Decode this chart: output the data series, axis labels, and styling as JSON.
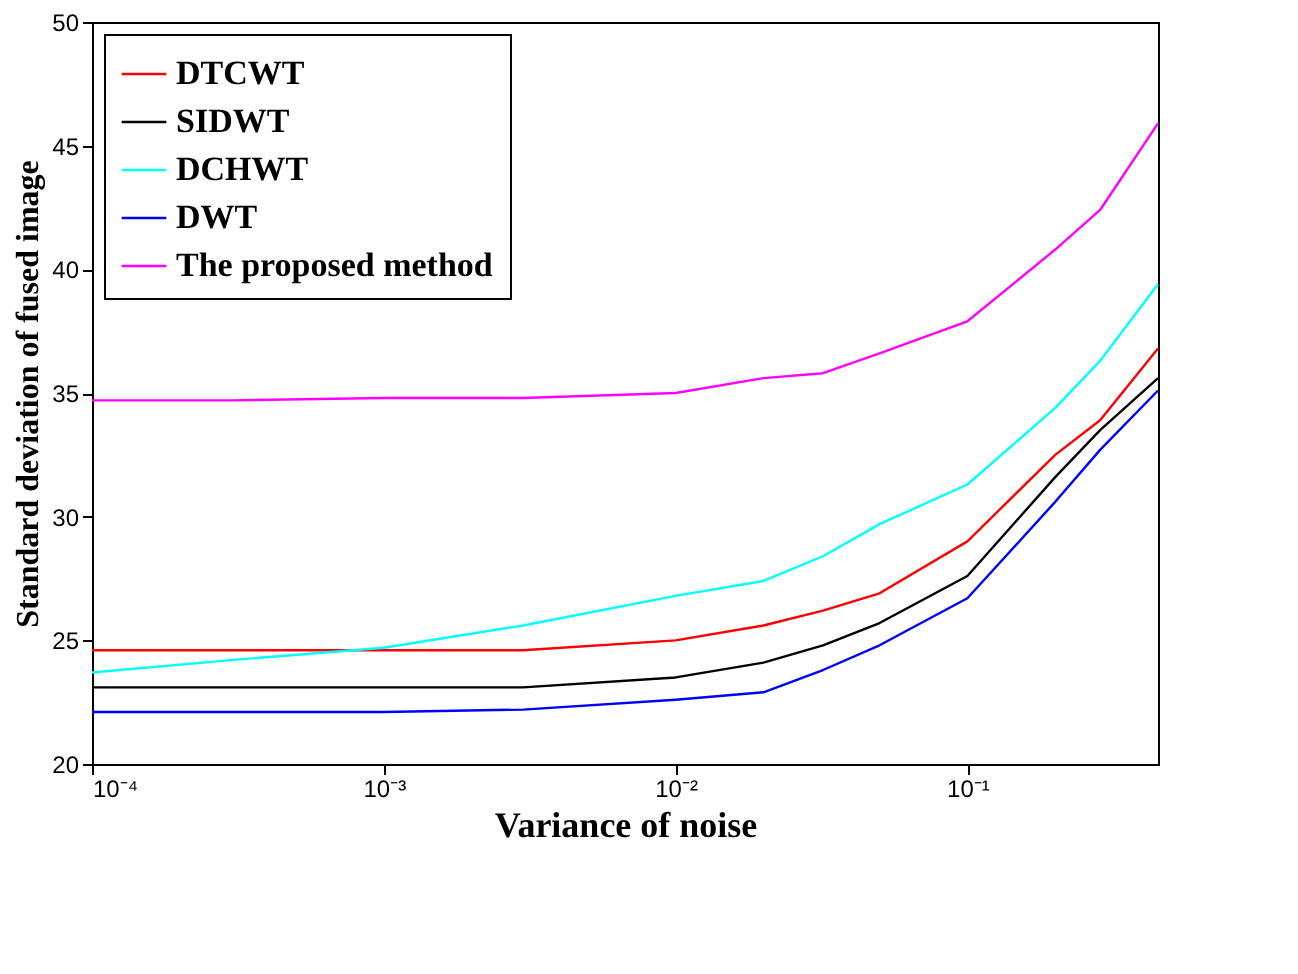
{
  "chart_data": {
    "type": "line",
    "xlabel": "Variance of noise",
    "ylabel": "Standard deviation of fused image",
    "log": "x",
    "x": [
      0.0001,
      0.0003,
      0.001,
      0.003,
      0.01,
      0.02,
      0.032,
      0.05,
      0.1,
      0.2,
      0.285,
      0.45
    ],
    "series": [
      {
        "name": "DTCWT",
        "color": "#ff0000",
        "values": [
          24.6,
          24.6,
          24.6,
          24.6,
          25.0,
          25.6,
          26.2,
          26.9,
          29.0,
          32.5,
          33.9,
          36.8
        ]
      },
      {
        "name": "SIDWT",
        "color": "#000000",
        "values": [
          23.1,
          23.1,
          23.1,
          23.1,
          23.5,
          24.1,
          24.8,
          25.7,
          27.6,
          31.6,
          33.5,
          35.6
        ]
      },
      {
        "name": "DCHWT",
        "color": "#00ffff",
        "values": [
          23.7,
          24.2,
          24.7,
          25.6,
          26.8,
          27.4,
          28.4,
          29.7,
          31.3,
          34.4,
          36.3,
          39.4
        ]
      },
      {
        "name": "DWT",
        "color": "#0000ff",
        "values": [
          22.1,
          22.1,
          22.1,
          22.2,
          22.6,
          22.9,
          23.8,
          24.8,
          26.7,
          30.6,
          32.7,
          35.1
        ]
      },
      {
        "name": "The proposed method",
        "color": "#ff00ff",
        "values": [
          34.7,
          34.7,
          34.8,
          34.8,
          35.0,
          35.6,
          35.8,
          36.6,
          37.9,
          40.8,
          42.4,
          45.9
        ]
      }
    ],
    "xlim": [
      0.0001,
      0.45
    ],
    "ylim": [
      20,
      50
    ],
    "xticks": [
      {
        "value": 0.0001,
        "label": "10⁻⁴"
      },
      {
        "value": 0.001,
        "label": "10⁻³"
      },
      {
        "value": 0.01,
        "label": "10⁻²"
      },
      {
        "value": 0.1,
        "label": "10⁻¹"
      }
    ],
    "yticks": [
      20,
      25,
      30,
      35,
      40,
      45,
      50
    ],
    "grid": false,
    "legend": "top left",
    "marker": "none",
    "line_style": "solid"
  }
}
